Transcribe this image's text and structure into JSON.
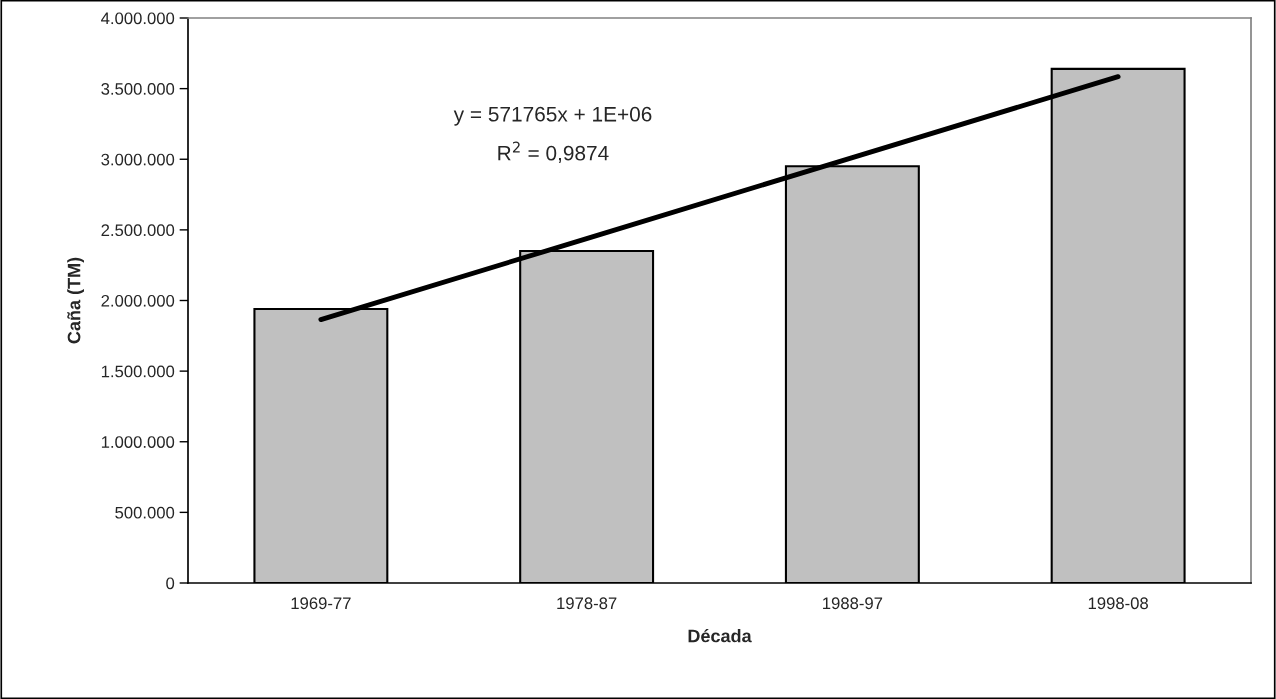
{
  "chart_data": {
    "type": "bar",
    "xlabel": "Década",
    "ylabel": "Caña (TM)",
    "categories": [
      "1969-77",
      "1978-87",
      "1988-97",
      "1998-08"
    ],
    "series": [
      {
        "color": "#c0c0c0",
        "values": [
          1940000,
          2350000,
          2950000,
          3640000
        ]
      },
      {
        "type": "line",
        "color": "#000000",
        "values": [
          1865000,
          2438000,
          3012000,
          3585000
        ]
      }
    ],
    "ylim": [
      0,
      4000000
    ],
    "yticks": [
      {
        "value": 0,
        "label": "0"
      },
      {
        "value": 500000,
        "label": "500.000"
      },
      {
        "value": 1000000,
        "label": "1.000.000"
      },
      {
        "value": 1500000,
        "label": "1.500.000"
      },
      {
        "value": 2000000,
        "label": "2.000.000"
      },
      {
        "value": 2500000,
        "label": "2.500.000"
      },
      {
        "value": 3000000,
        "label": "3.000.000"
      },
      {
        "value": 3500000,
        "label": "3.500.000"
      },
      {
        "value": 4000000,
        "label": "4.000.000"
      }
    ],
    "annotations": [
      "y = 571765x + 1E+06",
      "R$^{2}$ = 0,9874"
    ],
    "grid": false,
    "legend": false
  }
}
